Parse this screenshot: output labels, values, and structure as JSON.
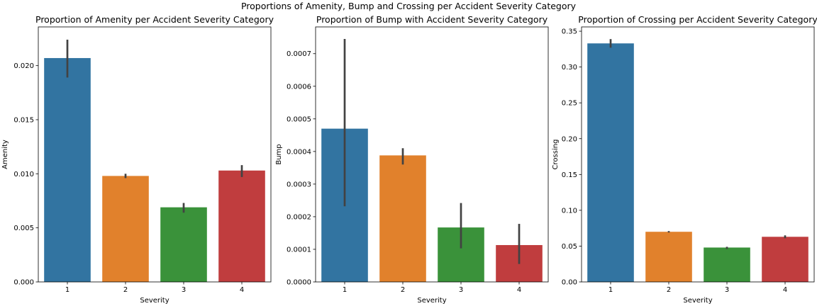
{
  "suptitle": "Proportions of Amenity, Bump and Crossing per Accident Severity Category",
  "chart_data": [
    {
      "type": "bar",
      "title": "Proportion of Amenity per Accident Severity Category",
      "xlabel": "Severity",
      "ylabel": "Amenity",
      "categories": [
        "1",
        "2",
        "3",
        "4"
      ],
      "values": [
        0.0207,
        0.0098,
        0.0069,
        0.0103
      ],
      "error_bars": [
        [
          0.0189,
          0.0224
        ],
        [
          0.0096,
          0.01
        ],
        [
          0.0064,
          0.0073
        ],
        [
          0.0097,
          0.0108
        ]
      ],
      "colors": [
        "#3274a1",
        "#e1812c",
        "#3a923a",
        "#c03d3e"
      ],
      "ylim": [
        0,
        0.02358
      ],
      "yticks": [
        0,
        0.005,
        0.01,
        0.015,
        0.02
      ],
      "ytick_labels": [
        "0.000",
        "0.005",
        "0.010",
        "0.015",
        "0.020"
      ],
      "grid": false,
      "legend": false
    },
    {
      "type": "bar",
      "title": "Proportion of Bump with Accident Severity Category",
      "xlabel": "Severity",
      "ylabel": "Bump",
      "categories": [
        "1",
        "2",
        "3",
        "4"
      ],
      "values": [
        0.00047,
        0.000388,
        0.000167,
        0.000113
      ],
      "error_bars": [
        [
          0.000232,
          0.000745
        ],
        [
          0.00036,
          0.00041
        ],
        [
          0.000103,
          0.000242
        ],
        [
          5.5e-05,
          0.000178
        ]
      ],
      "colors": [
        "#3274a1",
        "#e1812c",
        "#3a923a",
        "#c03d3e"
      ],
      "ylim": [
        0,
        0.000782
      ],
      "yticks": [
        0,
        0.0001,
        0.0002,
        0.0003,
        0.0004,
        0.0005,
        0.0006,
        0.0007
      ],
      "ytick_labels": [
        "0.0000",
        "0.0001",
        "0.0002",
        "0.0003",
        "0.0004",
        "0.0005",
        "0.0006",
        "0.0007"
      ],
      "grid": false,
      "legend": false
    },
    {
      "type": "bar",
      "title": "Proportion of Crossing per Accident Severity Category",
      "xlabel": "Severity",
      "ylabel": "Crossing",
      "categories": [
        "1",
        "2",
        "3",
        "4"
      ],
      "values": [
        0.333,
        0.07,
        0.048,
        0.063
      ],
      "error_bars": [
        [
          0.327,
          0.339
        ],
        [
          0.069,
          0.071
        ],
        [
          0.046,
          0.049
        ],
        [
          0.061,
          0.065
        ]
      ],
      "colors": [
        "#3274a1",
        "#e1812c",
        "#3a923a",
        "#c03d3e"
      ],
      "ylim": [
        0,
        0.356
      ],
      "yticks": [
        0,
        0.05,
        0.1,
        0.15,
        0.2,
        0.25,
        0.3,
        0.35
      ],
      "ytick_labels": [
        "0.00",
        "0.05",
        "0.10",
        "0.15",
        "0.20",
        "0.25",
        "0.30",
        "0.35"
      ],
      "grid": false,
      "legend": false
    }
  ]
}
